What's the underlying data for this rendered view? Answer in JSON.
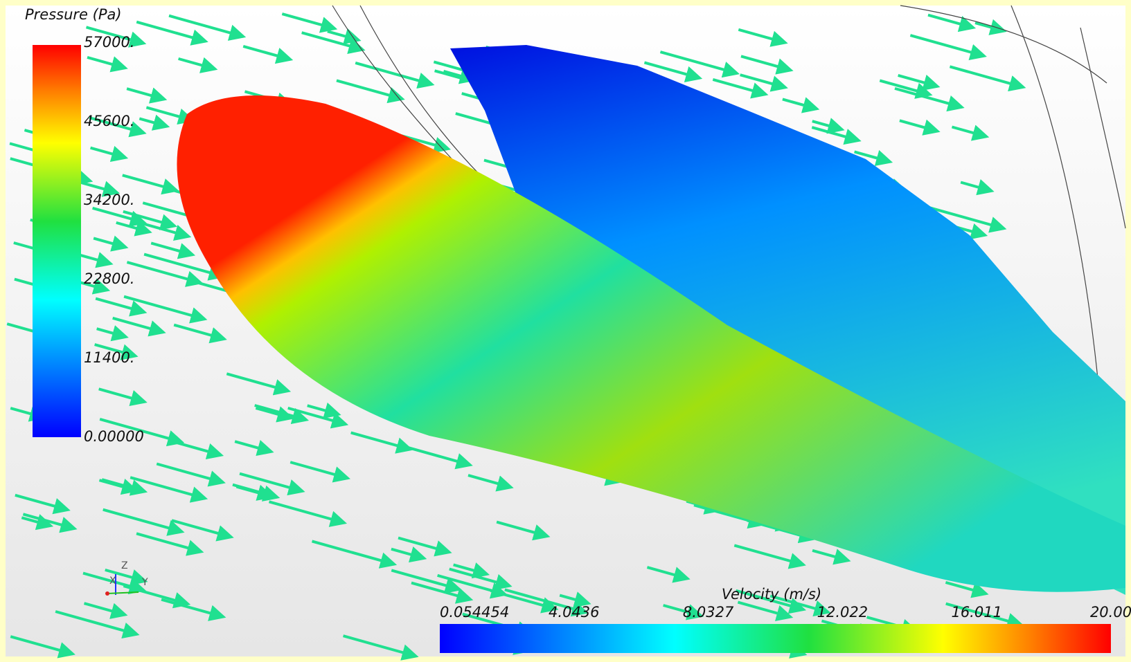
{
  "pressure_legend": {
    "title": "Pressure (Pa)",
    "labels": [
      "57000.",
      "45600.",
      "34200.",
      "22800.",
      "11400.",
      "0.00000"
    ]
  },
  "velocity_legend": {
    "title": "Velocity (m/s)",
    "labels": [
      "0.054454",
      "4.0436",
      "8.0327",
      "12.022",
      "16.011",
      "20.00"
    ]
  },
  "axes_triad": {
    "labels": [
      "Z",
      "X",
      "Y"
    ]
  }
}
